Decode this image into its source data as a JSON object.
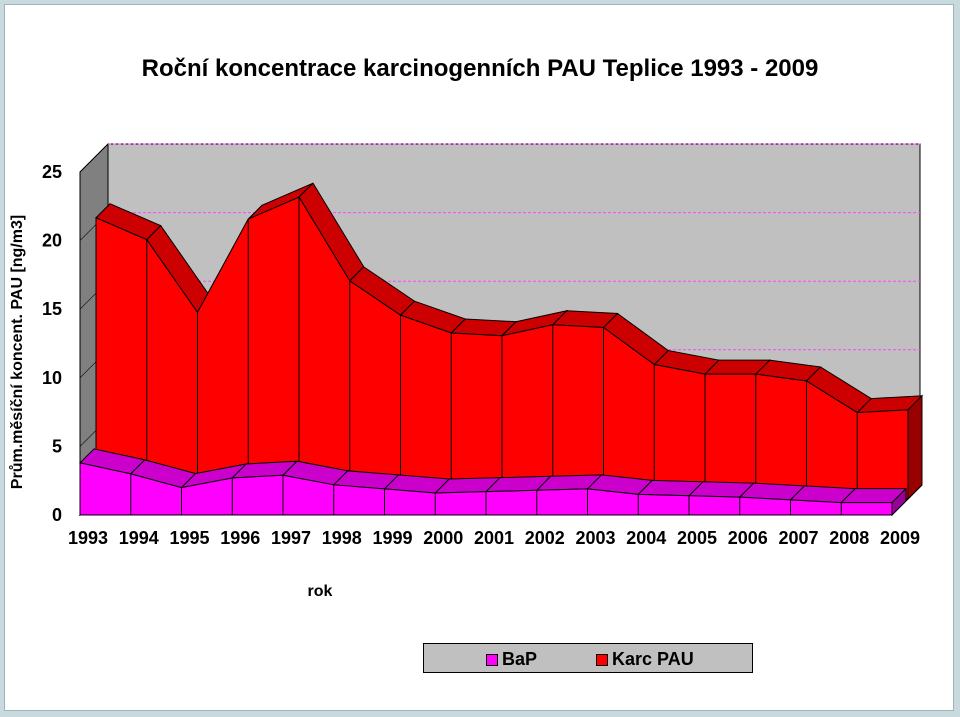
{
  "chart_data": {
    "type": "area",
    "title": "Roční koncentrace karcinogenních PAU Teplice 1993 - 2009",
    "xlabel": "rok",
    "ylabel": "Prům.měsíční koncent. PAU [ng/m3]",
    "categories": [
      "1993",
      "1994",
      "1995",
      "1996",
      "1997",
      "1998",
      "1999",
      "2000",
      "2001",
      "2002",
      "2003",
      "2004",
      "2005",
      "2006",
      "2007",
      "2008",
      "2009"
    ],
    "ylim": [
      0,
      25
    ],
    "yticks": [
      0,
      5,
      10,
      15,
      20,
      25
    ],
    "stacked": false,
    "legend_position": "bottom-right",
    "series": [
      {
        "name": "BaP",
        "color": "#ff00ff",
        "values": [
          3.8,
          3.0,
          2.0,
          2.7,
          2.9,
          2.2,
          1.9,
          1.6,
          1.7,
          1.8,
          1.9,
          1.5,
          1.4,
          1.3,
          1.1,
          0.9,
          0.9
        ]
      },
      {
        "name": "Karc PAU",
        "color": "#ff0000",
        "values": [
          20.5,
          18.9,
          13.6,
          20.4,
          22.0,
          15.9,
          13.4,
          12.1,
          11.9,
          12.7,
          12.5,
          9.8,
          9.1,
          9.1,
          8.6,
          6.3,
          6.5
        ]
      }
    ],
    "grid": true
  }
}
